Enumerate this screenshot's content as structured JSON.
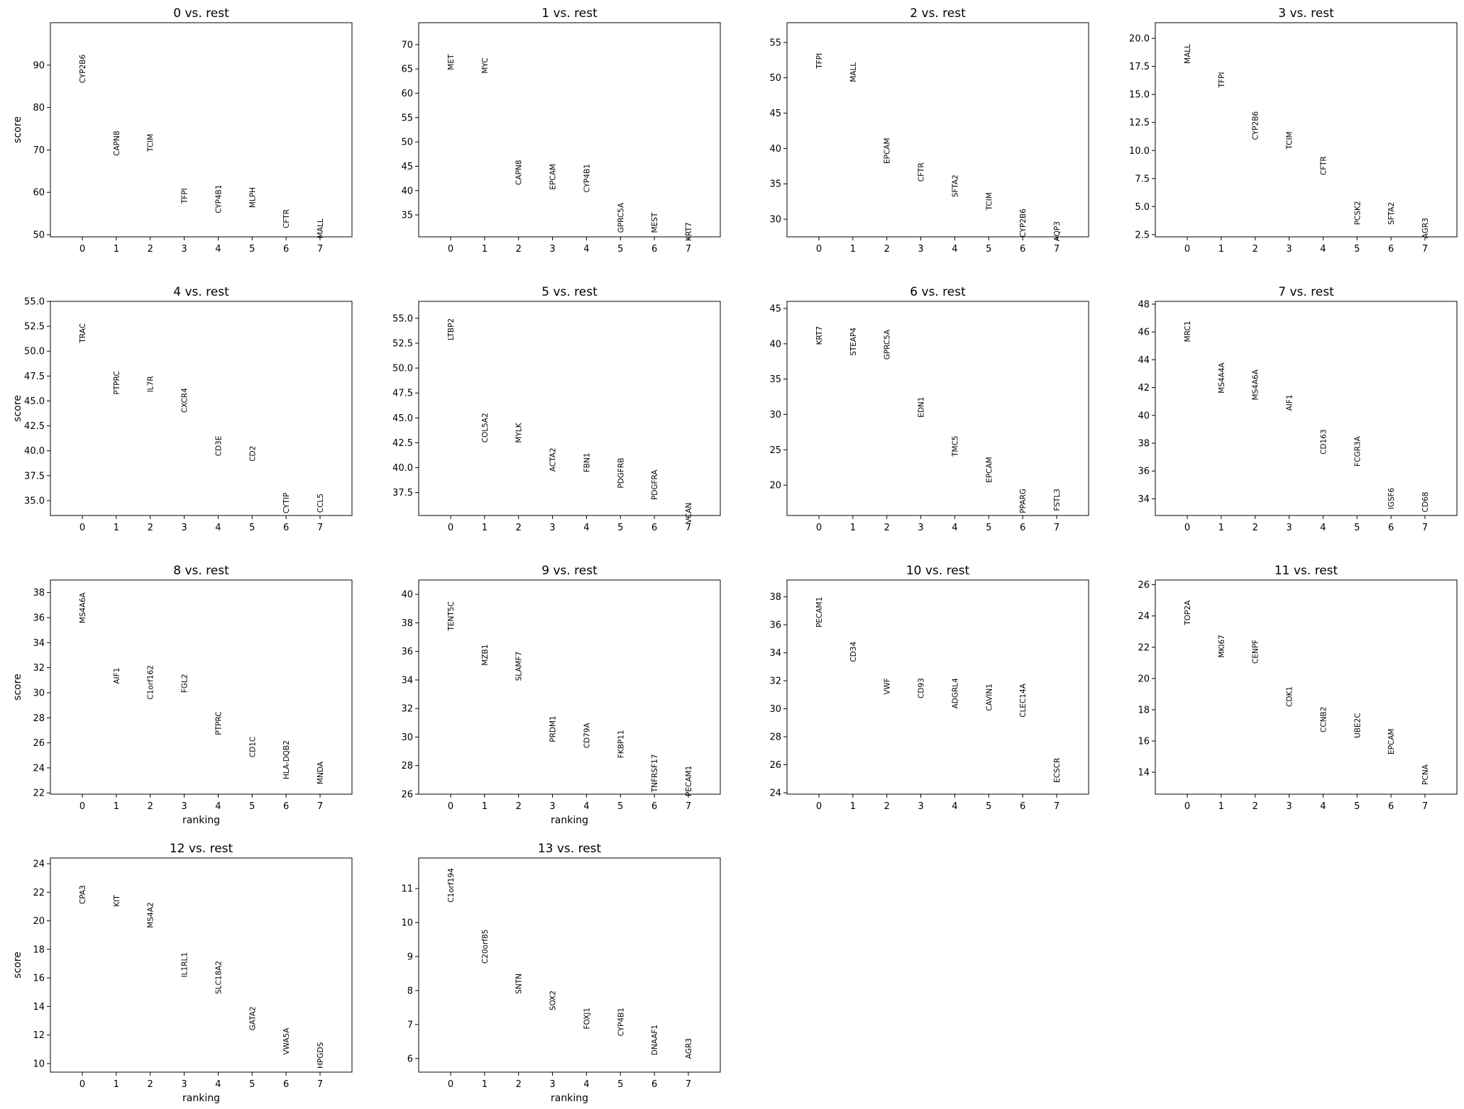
{
  "figure": {
    "shared_xlabel": "ranking",
    "shared_ylabel": "score"
  },
  "chart_data": [
    {
      "type": "scatter",
      "title": "0 vs. rest",
      "x": [
        0,
        1,
        2,
        3,
        4,
        5,
        6,
        7
      ],
      "labels": [
        "CYP2B6",
        "CAPN8",
        "TCIM",
        "TFPI",
        "CYP4B1",
        "MLPH",
        "CFTR",
        "MALL"
      ],
      "values": [
        92.5,
        74.5,
        73.8,
        61.0,
        61.8,
        61.2,
        56.0,
        53.8
      ],
      "yticks": [
        50,
        60,
        70,
        80,
        90
      ],
      "ylim": [
        49.5,
        100
      ],
      "xlabel": "",
      "ylabel": "score"
    },
    {
      "type": "scatter",
      "title": "1 vs. rest",
      "x": [
        0,
        1,
        2,
        3,
        4,
        5,
        6,
        7
      ],
      "labels": [
        "MET",
        "MYC",
        "CAPN8",
        "EPCAM",
        "CYP4B1",
        "GPRC5A",
        "MEST",
        "KRT7"
      ],
      "values": [
        68.0,
        67.3,
        46.3,
        45.5,
        45.5,
        37.5,
        35.5,
        33.5
      ],
      "yticks": [
        35,
        40,
        45,
        50,
        55,
        60,
        65,
        70
      ],
      "ylim": [
        30.5,
        74.5
      ],
      "xlabel": "",
      "ylabel": ""
    },
    {
      "type": "scatter",
      "title": "2 vs. rest",
      "x": [
        0,
        1,
        2,
        3,
        4,
        5,
        6,
        7
      ],
      "labels": [
        "TFPI",
        "MALL",
        "EPCAM",
        "CFTR",
        "SFTA2",
        "TCIM",
        "CYP2B6",
        "AQP3"
      ],
      "values": [
        53.5,
        52.2,
        41.5,
        38.0,
        36.3,
        33.8,
        31.5,
        29.7
      ],
      "yticks": [
        30,
        35,
        40,
        45,
        50,
        55
      ],
      "ylim": [
        27.5,
        57.8
      ],
      "xlabel": "",
      "ylabel": ""
    },
    {
      "type": "scatter",
      "title": "3 vs. rest",
      "x": [
        0,
        1,
        2,
        3,
        4,
        5,
        6,
        7
      ],
      "labels": [
        "MALL",
        "TFPI",
        "CYP2B6",
        "TCIM",
        "CFTR",
        "PCSK2",
        "SFTA2",
        "AGR3"
      ],
      "values": [
        19.5,
        17.0,
        13.5,
        11.7,
        9.5,
        5.5,
        5.4,
        4.0
      ],
      "yticks": [
        2.5,
        5.0,
        7.5,
        10.0,
        12.5,
        15.0,
        17.5,
        20.0
      ],
      "ylim": [
        2.3,
        21.4
      ],
      "xlabel": "",
      "ylabel": ""
    },
    {
      "type": "scatter",
      "title": "4 vs. rest",
      "x": [
        0,
        1,
        2,
        3,
        4,
        5,
        6,
        7
      ],
      "labels": [
        "TRAC",
        "PTPRC",
        "IL7R",
        "CXCR4",
        "CD3E",
        "CD2",
        "CYTIP",
        "CCL5"
      ],
      "values": [
        52.8,
        48.0,
        47.5,
        46.3,
        41.5,
        40.5,
        35.8,
        35.7
      ],
      "yticks": [
        35.0,
        37.5,
        40.0,
        42.5,
        45.0,
        47.5,
        50.0,
        52.5,
        55.0
      ],
      "ylim": [
        33.5,
        55.0
      ],
      "xlabel": "",
      "ylabel": "score"
    },
    {
      "type": "scatter",
      "title": "5 vs. rest",
      "x": [
        0,
        1,
        2,
        3,
        4,
        5,
        6,
        7
      ],
      "labels": [
        "LTBP2",
        "COL5A2",
        "MYLK",
        "ACTA2",
        "FBN1",
        "PDGFRB",
        "PDGFRA",
        "VCAN"
      ],
      "values": [
        55.0,
        45.5,
        44.5,
        42.0,
        41.5,
        41.0,
        39.8,
        36.5
      ],
      "yticks": [
        37.5,
        40.0,
        42.5,
        45.0,
        47.5,
        50.0,
        52.5,
        55.0
      ],
      "ylim": [
        35.2,
        56.7
      ],
      "xlabel": "",
      "ylabel": ""
    },
    {
      "type": "scatter",
      "title": "6 vs. rest",
      "x": [
        0,
        1,
        2,
        3,
        4,
        5,
        6,
        7
      ],
      "labels": [
        "KRT7",
        "STEAP4",
        "GPRC5A",
        "EDN1",
        "TMC5",
        "EPCAM",
        "PPARG",
        "FSTL3"
      ],
      "values": [
        42.5,
        42.3,
        42.0,
        32.5,
        27.0,
        24.0,
        19.5,
        19.5
      ],
      "yticks": [
        20,
        25,
        30,
        35,
        40,
        45
      ],
      "ylim": [
        15.7,
        46.0
      ],
      "xlabel": "",
      "ylabel": ""
    },
    {
      "type": "scatter",
      "title": "7 vs. rest",
      "x": [
        0,
        1,
        2,
        3,
        4,
        5,
        6,
        7
      ],
      "labels": [
        "MRC1",
        "MS4A4A",
        "MS4A6A",
        "AIF1",
        "CD163",
        "FCGR3A",
        "IGSF6",
        "CD68"
      ],
      "values": [
        46.8,
        43.8,
        43.3,
        41.5,
        39.0,
        38.5,
        34.8,
        34.5
      ],
      "yticks": [
        34,
        36,
        38,
        40,
        42,
        44,
        46,
        48
      ],
      "ylim": [
        32.8,
        48.2
      ],
      "xlabel": "",
      "ylabel": ""
    },
    {
      "type": "scatter",
      "title": "8 vs. rest",
      "x": [
        0,
        1,
        2,
        3,
        4,
        5,
        6,
        7
      ],
      "labels": [
        "MS4A6A",
        "AIF1",
        "C1orf162",
        "FGL2",
        "PTPRC",
        "CD1C",
        "HLA-DQB2",
        "MNDA"
      ],
      "values": [
        38.0,
        32.0,
        32.2,
        31.5,
        28.5,
        26.5,
        26.2,
        24.5
      ],
      "yticks": [
        22,
        24,
        26,
        28,
        30,
        32,
        34,
        36,
        38
      ],
      "ylim": [
        21.9,
        39.0
      ],
      "xlabel": "ranking",
      "ylabel": "score"
    },
    {
      "type": "scatter",
      "title": "9 vs. rest",
      "x": [
        0,
        1,
        2,
        3,
        4,
        5,
        6,
        7
      ],
      "labels": [
        "TENT5C",
        "MZB1",
        "SLAMF7",
        "PRDM1",
        "CD79A",
        "FKBP11",
        "TNFRSF17",
        "PECAM1"
      ],
      "values": [
        39.5,
        36.5,
        36.0,
        31.5,
        31.0,
        30.5,
        28.8,
        28.0
      ],
      "yticks": [
        26,
        28,
        30,
        32,
        34,
        36,
        38,
        40
      ],
      "ylim": [
        26.0,
        41.0
      ],
      "xlabel": "ranking",
      "ylabel": ""
    },
    {
      "type": "scatter",
      "title": "10 vs. rest",
      "x": [
        0,
        1,
        2,
        3,
        4,
        5,
        6,
        7
      ],
      "labels": [
        "PECAM1",
        "CD34",
        "VWF",
        "CD93",
        "ADGRL4",
        "CAVIN1",
        "CLEC14A",
        "ECSCR"
      ],
      "values": [
        38.0,
        34.8,
        32.2,
        32.2,
        32.2,
        31.8,
        31.8,
        26.5
      ],
      "yticks": [
        24,
        26,
        28,
        30,
        32,
        34,
        36,
        38
      ],
      "ylim": [
        23.9,
        39.2
      ],
      "xlabel": "",
      "ylabel": ""
    },
    {
      "type": "scatter",
      "title": "11 vs. rest",
      "x": [
        0,
        1,
        2,
        3,
        4,
        5,
        6,
        7
      ],
      "labels": [
        "TOP2A",
        "MKI67",
        "CENPF",
        "CDK1",
        "CCNB2",
        "UBE2C",
        "EPCAM",
        "PCNA"
      ],
      "values": [
        25.0,
        22.8,
        22.5,
        19.5,
        18.2,
        17.8,
        16.8,
        14.5
      ],
      "yticks": [
        14,
        16,
        18,
        20,
        22,
        24,
        26
      ],
      "ylim": [
        12.6,
        26.3
      ],
      "xlabel": "",
      "ylabel": ""
    },
    {
      "type": "scatter",
      "title": "12 vs. rest",
      "x": [
        0,
        1,
        2,
        3,
        4,
        5,
        6,
        7
      ],
      "labels": [
        "CPA3",
        "KIT",
        "MS4A2",
        "IL1RL1",
        "SLC18A2",
        "GATA2",
        "VWA5A",
        "HPGDS"
      ],
      "values": [
        22.5,
        21.8,
        21.3,
        17.8,
        17.2,
        14.0,
        12.5,
        11.5
      ],
      "yticks": [
        10,
        12,
        14,
        16,
        18,
        20,
        22,
        24
      ],
      "ylim": [
        9.4,
        24.4
      ],
      "xlabel": "ranking",
      "ylabel": "score"
    },
    {
      "type": "scatter",
      "title": "13 vs. rest",
      "x": [
        0,
        1,
        2,
        3,
        4,
        5,
        6,
        7
      ],
      "labels": [
        "C1orf194",
        "C20orf85",
        "SNTN",
        "SOX2",
        "FOXJ1",
        "CYP4B1",
        "DNAAF1",
        "AGR3"
      ],
      "values": [
        11.6,
        9.8,
        8.5,
        8.0,
        7.5,
        7.5,
        7.0,
        6.6
      ],
      "yticks": [
        6,
        7,
        8,
        9,
        10,
        11
      ],
      "ylim": [
        5.6,
        11.9
      ],
      "xlabel": "ranking",
      "ylabel": ""
    }
  ]
}
